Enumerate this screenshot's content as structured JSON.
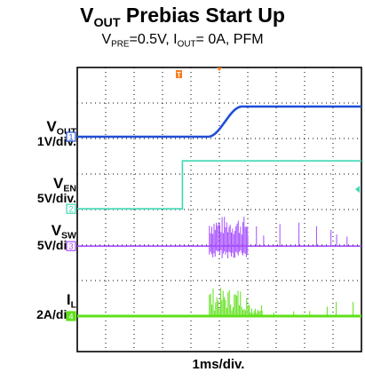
{
  "chart_data": {
    "type": "line",
    "title": {
      "main": "V",
      "sub": "OUT",
      "rest": " Prebias Start Up"
    },
    "subtitle": {
      "a": "V",
      "a_sub": "PRE",
      "b": "=0.5V, I",
      "b_sub": "OUT",
      "c": "= 0A, PFM"
    },
    "xlabel": "1ms/div.",
    "grid": true,
    "divisions": {
      "x": 10,
      "y": 8
    },
    "trigger_marker": "T",
    "markers": {
      "vout": "1",
      "ven": "2",
      "vsw": "3",
      "il": "4"
    },
    "channels": [
      {
        "key": "vout",
        "name": "V",
        "name_sub": "OUT",
        "scale": "1V/div.",
        "color": "#1f4fd8",
        "baseline_div": 1.95,
        "events": {
          "low_div": 0,
          "high_div": 0.85,
          "rise_start": 4.6,
          "rise_end": 5.8
        }
      },
      {
        "key": "ven",
        "name": "V",
        "name_sub": "EN",
        "scale": "5V/div.",
        "color": "#3fd7b3",
        "baseline_div": 3.98,
        "events": {
          "low_div": 0,
          "high_div": 1.35,
          "step_at": 3.7
        }
      },
      {
        "key": "vsw",
        "name": "V",
        "name_sub": "SW",
        "scale": "5V/div.",
        "color": "#a64dff",
        "baseline_div": 5.03,
        "events": {
          "burst_start": 4.65,
          "burst_end": 6.0,
          "pulse_until": 10
        }
      },
      {
        "key": "il",
        "name": "I",
        "name_sub": "L",
        "scale": "2A/div.",
        "color": "#5fe01a",
        "baseline_div": 7.0,
        "events": {
          "burst_start": 4.65,
          "burst_end": 6.5,
          "pulse_until": 10
        }
      }
    ]
  }
}
